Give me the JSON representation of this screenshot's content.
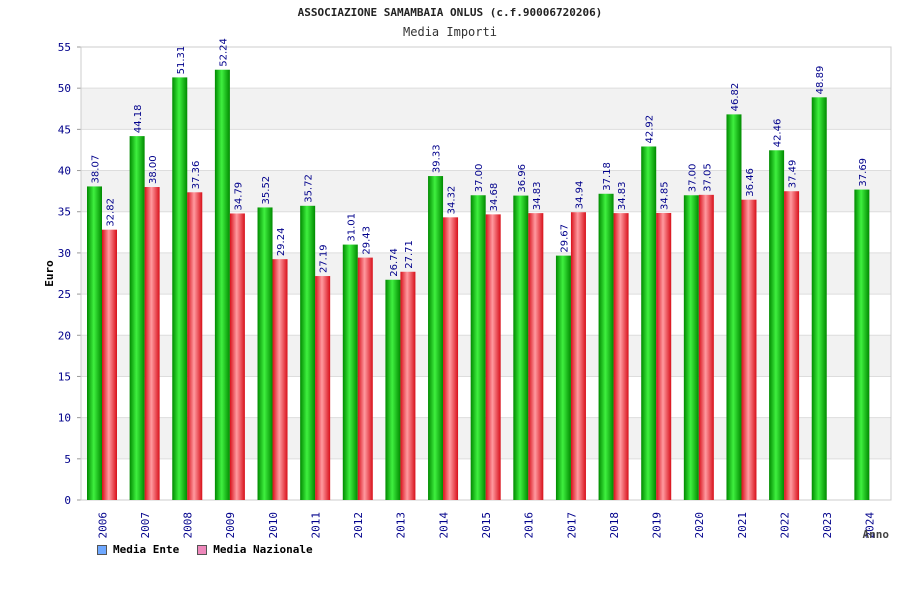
{
  "title": "ASSOCIAZIONE SAMAMBAIA ONLUS (c.f.90006720206)",
  "subtitle": "Media Importi",
  "legend": [
    {
      "label": "Media Ente",
      "color": "#6fa8ff"
    },
    {
      "label": "Media Nazionale",
      "color": "#ee88bb"
    }
  ],
  "colors": {
    "ente_dark": "#008a00",
    "ente_light": "#3ff03f",
    "naz_dark": "#d8101a",
    "naz_light": "#ff9aa0",
    "band": "#f2f2f2",
    "axis_text": "#00008b"
  },
  "chart_data": {
    "type": "bar",
    "title": "ASSOCIAZIONE SAMAMBAIA ONLUS (c.f.90006720206)",
    "subtitle": "Media Importi",
    "xlabel": "Anno",
    "ylabel": "Euro",
    "ylim": [
      0,
      55
    ],
    "yticks": [
      0,
      5,
      10,
      15,
      20,
      25,
      30,
      35,
      40,
      45,
      50,
      55
    ],
    "grid": true,
    "legend_position": "bottom-left",
    "categories": [
      "2006",
      "2007",
      "2008",
      "2009",
      "2010",
      "2011",
      "2012",
      "2013",
      "2014",
      "2015",
      "2016",
      "2017",
      "2018",
      "2019",
      "2020",
      "2021",
      "2022",
      "2023",
      "2024"
    ],
    "series": [
      {
        "name": "Media Ente",
        "values": [
          38.07,
          44.18,
          51.31,
          52.24,
          35.52,
          35.72,
          31.01,
          26.74,
          39.33,
          37.0,
          36.96,
          29.67,
          37.18,
          42.92,
          37.0,
          46.82,
          42.46,
          48.89,
          37.69
        ],
        "labels": [
          "38.07",
          "44.18",
          "51.31",
          "52.24",
          "35.52",
          "35.72",
          "31.01",
          "26.74",
          "39.33",
          "37.00",
          "36.96",
          "29.67",
          "37.18",
          "42.92",
          "37.00",
          "46.82",
          "42.46",
          "48.89",
          "37.69"
        ]
      },
      {
        "name": "Media Nazionale",
        "values": [
          32.82,
          38.0,
          37.36,
          34.79,
          29.24,
          27.19,
          29.43,
          27.71,
          34.32,
          34.68,
          34.83,
          34.94,
          34.83,
          34.85,
          37.05,
          36.46,
          37.49,
          null,
          null
        ],
        "labels": [
          "32.82",
          "38.00",
          "37.36",
          "34.79",
          "29.24",
          "27.19",
          "29.43",
          "27.71",
          "34.32",
          "34.68",
          "34.83",
          "34.94",
          "34.83",
          "34.85",
          "37.05",
          "36.46",
          "37.49",
          "",
          ""
        ]
      }
    ]
  }
}
